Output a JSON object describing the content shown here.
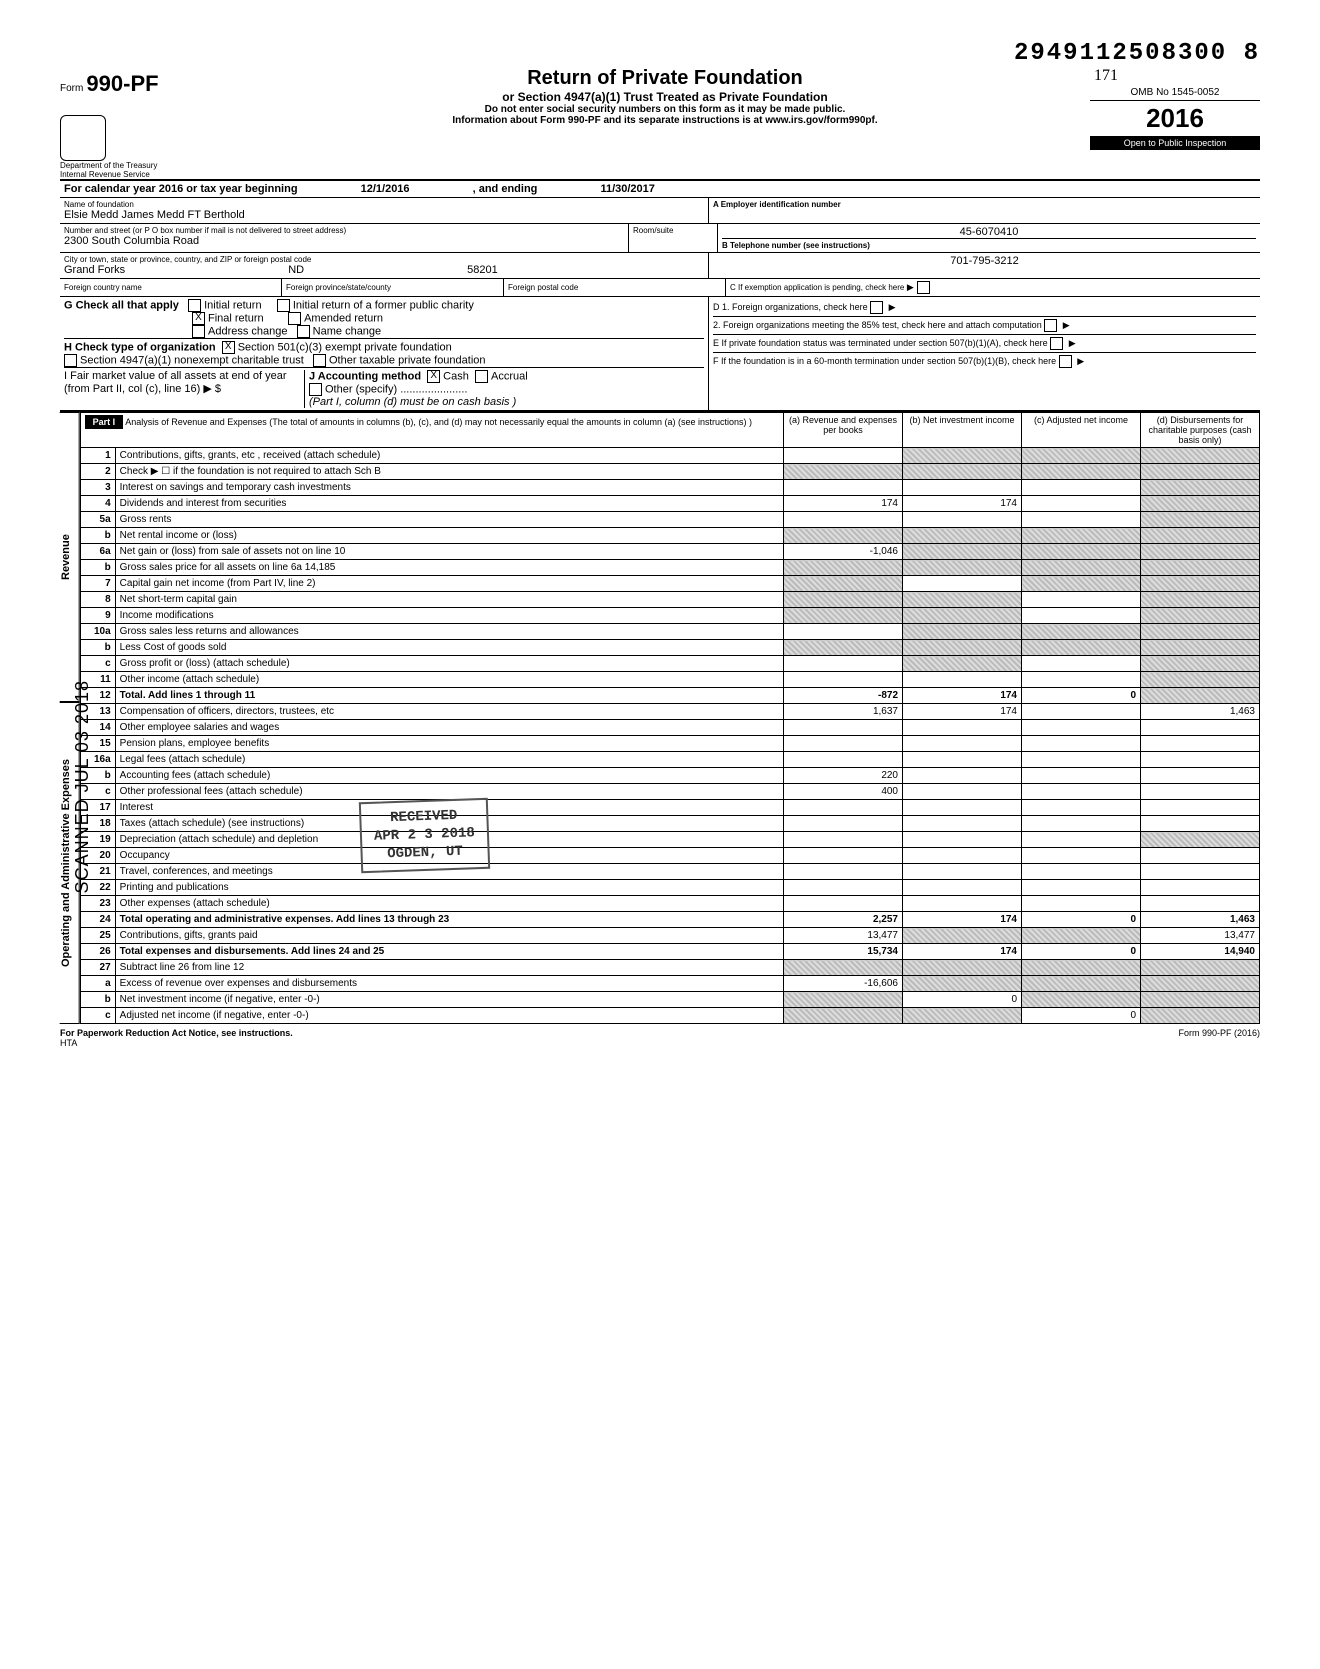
{
  "doc_number": "2949112508300  8",
  "omb": "OMB No 1545-0052",
  "form": {
    "prefix": "Form",
    "number": "990-PF",
    "title": "Return of Private Foundation",
    "subtitle": "or Section 4947(a)(1) Trust Treated as Private Foundation",
    "note1": "Do not enter social security numbers on this form as it may be made public.",
    "note2": "Information about Form 990-PF and its separate instructions is at www.irs.gov/form990pf.",
    "year_prefix": "20",
    "year_suffix": "16",
    "inspect": "Open to Public Inspection",
    "dept1": "Department of the Treasury",
    "dept2": "Internal Revenue Service",
    "handwritten_171": "171"
  },
  "calendar_line": {
    "label": "For calendar year 2016 or tax year beginning",
    "begin": "12/1/2016",
    "mid": ", and ending",
    "end": "11/30/2017"
  },
  "id_block": {
    "name_label": "Name of foundation",
    "name": "Elsie Medd James Medd FT Berthold",
    "addr_label": "Number and street (or P O box number if mail is not delivered to street address)",
    "room_label": "Room/suite",
    "addr": "2300 South Columbia Road",
    "city_label": "City or town, state or province, country, and ZIP or foreign postal code",
    "city": "Grand Forks",
    "state": "ND",
    "zip": "58201",
    "foreign_country_label": "Foreign country name",
    "foreign_prov_label": "Foreign province/state/county",
    "foreign_postal_label": "Foreign postal code",
    "ein_label": "A  Employer identification number",
    "ein": "45-6070410",
    "phone_label": "B  Telephone number (see instructions)",
    "phone": "701-795-3212",
    "c_label": "C  If exemption application is pending, check here"
  },
  "section_g": {
    "label": "G  Check all that apply",
    "opts": {
      "initial": "Initial return",
      "initial_former": "Initial return of a former public charity",
      "final": "Final return",
      "amended": "Amended return",
      "addr_change": "Address change",
      "name_change": "Name change"
    },
    "final_checked": "X"
  },
  "section_h": {
    "label": "H  Check type of organization",
    "opt1": "Section 501(c)(3) exempt private foundation",
    "opt1_checked": "X",
    "opt2": "Section 4947(a)(1) nonexempt charitable trust",
    "opt3": "Other taxable private foundation"
  },
  "section_i": {
    "label": "I   Fair market value of all assets at end of year (from Part II, col (c), line 16) ▶ $",
    "j_label": "J   Accounting method",
    "cash": "Cash",
    "cash_checked": "X",
    "accrual": "Accrual",
    "other": "Other (specify)",
    "note": "(Part I, column (d) must be on cash basis )"
  },
  "section_d": {
    "d1": "D  1. Foreign organizations, check here",
    "d2": "2. Foreign organizations meeting the 85% test, check here and attach computation",
    "e": "E  If private foundation status was terminated under section 507(b)(1)(A), check here",
    "f": "F  If the foundation is in a 60-month termination under section 507(b)(1)(B), check here"
  },
  "part1": {
    "label": "Part I",
    "title": "Analysis of Revenue and Expenses (The total of amounts in columns (b), (c), and (d) may not necessarily equal the amounts in column (a) (see instructions) )",
    "col_a": "(a) Revenue and expenses per books",
    "col_b": "(b) Net investment income",
    "col_c": "(c) Adjusted net income",
    "col_d": "(d) Disbursements for charitable purposes (cash basis only)"
  },
  "side_labels": {
    "revenue": "Revenue",
    "expenses": "Operating and Administrative Expenses"
  },
  "lines": [
    {
      "n": "1",
      "d": "Contributions, gifts, grants, etc , received (attach schedule)",
      "a": "",
      "b": "shade",
      "c": "shade",
      "dcol": "shade",
      "a_shade": true
    },
    {
      "n": "2",
      "d": "Check ▶ ☐ if the foundation is not required to attach Sch B",
      "a": "shade",
      "b": "shade",
      "c": "shade",
      "dcol": "shade"
    },
    {
      "n": "3",
      "d": "Interest on savings and temporary cash investments",
      "a": "",
      "b": "",
      "c": "",
      "dcol": "shade"
    },
    {
      "n": "4",
      "d": "Dividends and interest from securities",
      "a": "174",
      "b": "174",
      "c": "",
      "dcol": "shade"
    },
    {
      "n": "5a",
      "d": "Gross rents",
      "a": "",
      "b": "",
      "c": "",
      "dcol": "shade"
    },
    {
      "n": "b",
      "d": "Net rental income or (loss)",
      "a": "shade",
      "b": "shade",
      "c": "shade",
      "dcol": "shade"
    },
    {
      "n": "6a",
      "d": "Net gain or (loss) from sale of assets not on line 10",
      "a": "-1,046",
      "b": "shade",
      "c": "shade",
      "dcol": "shade"
    },
    {
      "n": "b",
      "d": "Gross sales price for all assets on line 6a                       14,185",
      "a": "shade",
      "b": "shade",
      "c": "shade",
      "dcol": "shade"
    },
    {
      "n": "7",
      "d": "Capital gain net income (from Part IV, line 2)",
      "a": "shade",
      "b": "",
      "c": "shade",
      "dcol": "shade"
    },
    {
      "n": "8",
      "d": "Net short-term capital gain",
      "a": "shade",
      "b": "shade",
      "c": "",
      "dcol": "shade"
    },
    {
      "n": "9",
      "d": "Income modifications",
      "a": "shade",
      "b": "shade",
      "c": "",
      "dcol": "shade"
    },
    {
      "n": "10a",
      "d": "Gross sales less returns and allowances",
      "a": "",
      "b": "shade",
      "c": "shade",
      "dcol": "shade"
    },
    {
      "n": "b",
      "d": "Less Cost of goods sold",
      "a": "shade",
      "b": "shade",
      "c": "shade",
      "dcol": "shade"
    },
    {
      "n": "c",
      "d": "Gross profit or (loss) (attach schedule)",
      "a": "",
      "b": "shade",
      "c": "",
      "dcol": "shade"
    },
    {
      "n": "11",
      "d": "Other income (attach schedule)",
      "a": "",
      "b": "",
      "c": "",
      "dcol": "shade"
    },
    {
      "n": "12",
      "d": "Total. Add lines 1 through 11",
      "a": "-872",
      "b": "174",
      "c": "0",
      "dcol": "shade",
      "bold": true
    },
    {
      "n": "13",
      "d": "Compensation of officers, directors, trustees, etc",
      "a": "1,637",
      "b": "174",
      "c": "",
      "dcol": "1,463"
    },
    {
      "n": "14",
      "d": "Other employee salaries and wages",
      "a": "",
      "b": "",
      "c": "",
      "dcol": ""
    },
    {
      "n": "15",
      "d": "Pension plans, employee benefits",
      "a": "",
      "b": "",
      "c": "",
      "dcol": ""
    },
    {
      "n": "16a",
      "d": "Legal fees (attach schedule)",
      "a": "",
      "b": "",
      "c": "",
      "dcol": ""
    },
    {
      "n": "b",
      "d": "Accounting fees (attach schedule)",
      "a": "220",
      "b": "",
      "c": "",
      "dcol": ""
    },
    {
      "n": "c",
      "d": "Other professional fees (attach schedule)",
      "a": "400",
      "b": "",
      "c": "",
      "dcol": ""
    },
    {
      "n": "17",
      "d": "Interest",
      "a": "",
      "b": "",
      "c": "",
      "dcol": ""
    },
    {
      "n": "18",
      "d": "Taxes (attach schedule) (see instructions)",
      "a": "",
      "b": "",
      "c": "",
      "dcol": ""
    },
    {
      "n": "19",
      "d": "Depreciation (attach schedule) and depletion",
      "a": "",
      "b": "",
      "c": "",
      "dcol": "shade"
    },
    {
      "n": "20",
      "d": "Occupancy",
      "a": "",
      "b": "",
      "c": "",
      "dcol": ""
    },
    {
      "n": "21",
      "d": "Travel, conferences, and meetings",
      "a": "",
      "b": "",
      "c": "",
      "dcol": ""
    },
    {
      "n": "22",
      "d": "Printing and publications",
      "a": "",
      "b": "",
      "c": "",
      "dcol": ""
    },
    {
      "n": "23",
      "d": "Other expenses (attach schedule)",
      "a": "",
      "b": "",
      "c": "",
      "dcol": ""
    },
    {
      "n": "24",
      "d": "Total operating and administrative expenses. Add lines 13 through 23",
      "a": "2,257",
      "b": "174",
      "c": "0",
      "dcol": "1,463",
      "bold": true
    },
    {
      "n": "25",
      "d": "Contributions, gifts, grants paid",
      "a": "13,477",
      "b": "shade",
      "c": "shade",
      "dcol": "13,477"
    },
    {
      "n": "26",
      "d": "Total expenses and disbursements. Add lines 24 and 25",
      "a": "15,734",
      "b": "174",
      "c": "0",
      "dcol": "14,940",
      "bold": true
    },
    {
      "n": "27",
      "d": "Subtract line 26 from line 12",
      "a": "shade",
      "b": "shade",
      "c": "shade",
      "dcol": "shade"
    },
    {
      "n": "a",
      "d": "Excess of revenue over expenses and disbursements",
      "a": "-16,606",
      "b": "shade",
      "c": "shade",
      "dcol": "shade"
    },
    {
      "n": "b",
      "d": "Net investment income (if negative, enter -0-)",
      "a": "shade",
      "b": "0",
      "c": "shade",
      "dcol": "shade"
    },
    {
      "n": "c",
      "d": "Adjusted net income (if negative, enter -0-)",
      "a": "shade",
      "b": "shade",
      "c": "0",
      "dcol": "shade"
    }
  ],
  "stamps": {
    "received": "RECEIVED",
    "date": "APR 2 3 2018",
    "ogden": "OGDEN, UT",
    "scanned": "SCANNED JUL 03 2018"
  },
  "footer": {
    "left": "For Paperwork Reduction Act Notice, see instructions.",
    "hta": "HTA",
    "right": "Form 990-PF (2016)"
  }
}
